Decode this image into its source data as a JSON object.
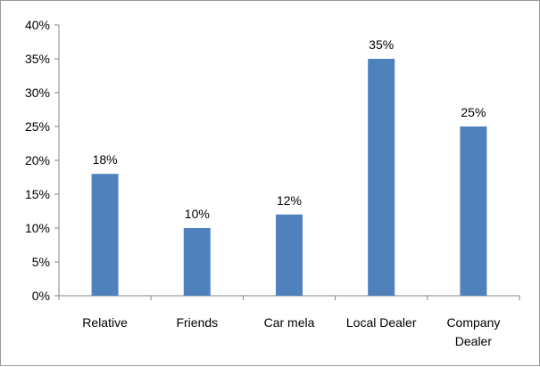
{
  "chart_data": {
    "type": "bar",
    "categories": [
      "Relative",
      "Friends",
      "Car mela",
      "Local Dealer",
      "Company Dealer"
    ],
    "values": [
      18,
      10,
      12,
      35,
      25
    ],
    "data_labels": [
      "18%",
      "10%",
      "12%",
      "35%",
      "25%"
    ],
    "y_ticks": [
      0,
      5,
      10,
      15,
      20,
      25,
      30,
      35,
      40
    ],
    "y_tick_labels": [
      "0%",
      "5%",
      "10%",
      "15%",
      "20%",
      "25%",
      "30%",
      "35%",
      "40%"
    ],
    "ylim": [
      0,
      40
    ],
    "grid": false,
    "legend": "none",
    "bar_color": "#4F81BD"
  }
}
